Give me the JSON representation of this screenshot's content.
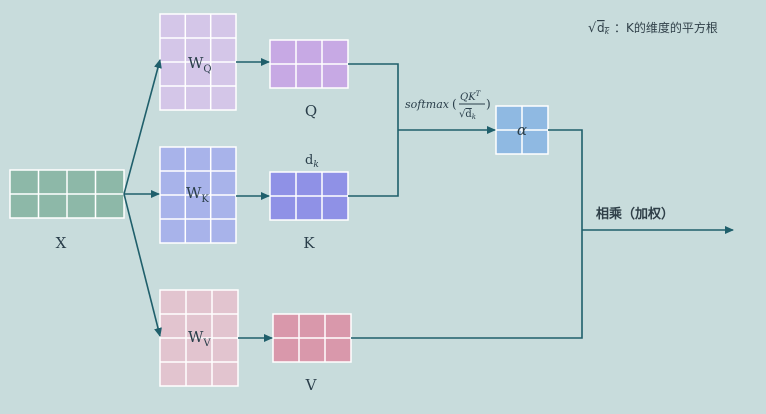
{
  "note": {
    "text": "√dk：K的维度的平方根",
    "sqrt_symbol": "√",
    "dk": "d",
    "dk_sub": "k",
    "suffix": "：K的维度的平方根"
  },
  "labels": {
    "x": "X",
    "wq_main": "W",
    "wq_sub": "Q",
    "wk_main": "W",
    "wk_sub": "K",
    "wv_main": "W",
    "wv_sub": "V",
    "q": "Q",
    "k": "K",
    "v": "V",
    "dk_main": "d",
    "dk_sub": "k",
    "alpha": "α",
    "weighted_product": "相乘（加权）"
  },
  "formula": {
    "softmax": "softmax",
    "numerator": "QK",
    "numerator_sup": "T",
    "denominator_sqrt": "√",
    "denominator": "d",
    "denominator_sub": "k",
    "open_paren": "(",
    "close_paren": ")"
  },
  "colors": {
    "background": "#c8dcdc",
    "x_matrix": "#8db8a8",
    "wq_matrix": "#d4c6e8",
    "q_matrix": "#c7a9e4",
    "wk_matrix": "#a8b3ea",
    "k_matrix": "#8f91e6",
    "wv_matrix": "#e2c4cf",
    "v_matrix": "#d998ab",
    "alpha_matrix": "#8fb9e2",
    "arrow": "#1f5f6b"
  }
}
